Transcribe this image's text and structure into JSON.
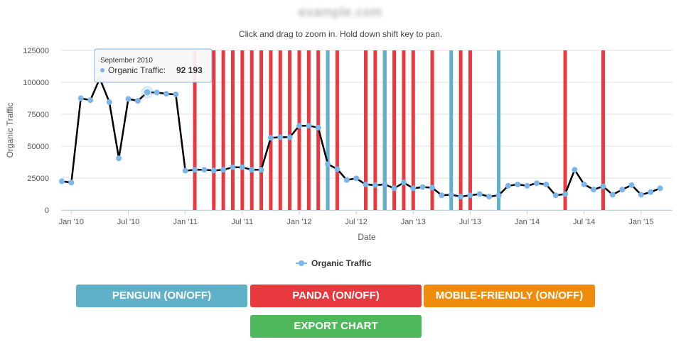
{
  "header": {
    "site_title": "example.com",
    "zoom_hint": "Click and drag to zoom in. Hold down shift key to pan."
  },
  "tooltip": {
    "date": "September 2010",
    "series_label": "Organic Traffic:",
    "value": "92 193"
  },
  "buttons": {
    "penguin": "PENGUIN (ON/OFF)",
    "panda": "PANDA (ON/OFF)",
    "mobile": "MOBILE-FRIENDLY (ON/OFF)",
    "export": "EXPORT CHART"
  },
  "colors": {
    "line": "#000000",
    "point": "#7cb5ec",
    "panda": "#e8393e",
    "penguin": "#5fb0c8",
    "mobile": "#ef8c0c",
    "export": "#50b85c",
    "grid": "#e0e0e0"
  },
  "chart_data": {
    "type": "line",
    "title": "",
    "xlabel": "Date",
    "ylabel": "Organic Traffic",
    "ylim": [
      0,
      125000
    ],
    "yticks": [
      0,
      25000,
      50000,
      75000,
      100000,
      125000
    ],
    "ytick_labels": [
      "0",
      "25000",
      "50000",
      "75000",
      "100000",
      "125000"
    ],
    "xlim": [
      "2009-12",
      "2015-04"
    ],
    "xticks": [
      "2010-01",
      "2010-07",
      "2011-01",
      "2011-07",
      "2012-01",
      "2012-07",
      "2013-01",
      "2013-07",
      "2014-01",
      "2014-07",
      "2015-01"
    ],
    "xtick_labels": [
      "Jan '10",
      "Jul '10",
      "Jan '11",
      "Jul '11",
      "Jan '12",
      "Jul '12",
      "Jan '13",
      "Jul '13",
      "Jan '14",
      "Jul '14",
      "Jan '15"
    ],
    "grid": true,
    "legend": "bottom-center",
    "series": [
      {
        "name": "Organic Traffic",
        "x": [
          "2009-12",
          "2010-01",
          "2010-02",
          "2010-03",
          "2010-04",
          "2010-05",
          "2010-06",
          "2010-07",
          "2010-08",
          "2010-09",
          "2010-10",
          "2010-11",
          "2010-12",
          "2011-01",
          "2011-02",
          "2011-03",
          "2011-04",
          "2011-05",
          "2011-06",
          "2011-07",
          "2011-08",
          "2011-09",
          "2011-10",
          "2011-11",
          "2011-12",
          "2012-01",
          "2012-02",
          "2012-03",
          "2012-04",
          "2012-05",
          "2012-06",
          "2012-07",
          "2012-08",
          "2012-09",
          "2012-10",
          "2012-11",
          "2012-12",
          "2013-01",
          "2013-02",
          "2013-03",
          "2013-04",
          "2013-05",
          "2013-06",
          "2013-07",
          "2013-08",
          "2013-09",
          "2013-10",
          "2013-11",
          "2013-12",
          "2014-01",
          "2014-02",
          "2014-03",
          "2014-04",
          "2014-05",
          "2014-06",
          "2014-07",
          "2014-08",
          "2014-09",
          "2014-10",
          "2014-11",
          "2014-12",
          "2015-01",
          "2015-02",
          "2015-03"
        ],
        "values": [
          22500,
          21500,
          87500,
          86000,
          103000,
          84500,
          40500,
          87000,
          85500,
          92193,
          92000,
          91000,
          90500,
          30800,
          31500,
          31500,
          31000,
          31500,
          33500,
          33500,
          31500,
          31500,
          56500,
          57000,
          57000,
          66000,
          66000,
          64500,
          36000,
          32000,
          23500,
          24800,
          20000,
          19500,
          20000,
          17000,
          21500,
          17000,
          18000,
          17500,
          11500,
          12000,
          10500,
          11500,
          12500,
          10500,
          11500,
          19000,
          20000,
          19000,
          21000,
          20000,
          11500,
          12500,
          31500,
          20000,
          16000,
          18500,
          12000,
          16000,
          19500,
          12000,
          14000,
          17000
        ]
      }
    ],
    "panda_updates": [
      "2011-02",
      "2011-04",
      "2011-05",
      "2011-06",
      "2011-07",
      "2011-08",
      "2011-09",
      "2011-10",
      "2011-11",
      "2011-12",
      "2012-01",
      "2012-02",
      "2012-03",
      "2012-04",
      "2012-05",
      "2012-08",
      "2012-09",
      "2012-10",
      "2012-11",
      "2012-12",
      "2013-01",
      "2013-03",
      "2013-06",
      "2013-07",
      "2014-05",
      "2014-09"
    ],
    "penguin_updates": [
      "2012-04",
      "2012-10",
      "2013-05",
      "2013-10"
    ]
  }
}
